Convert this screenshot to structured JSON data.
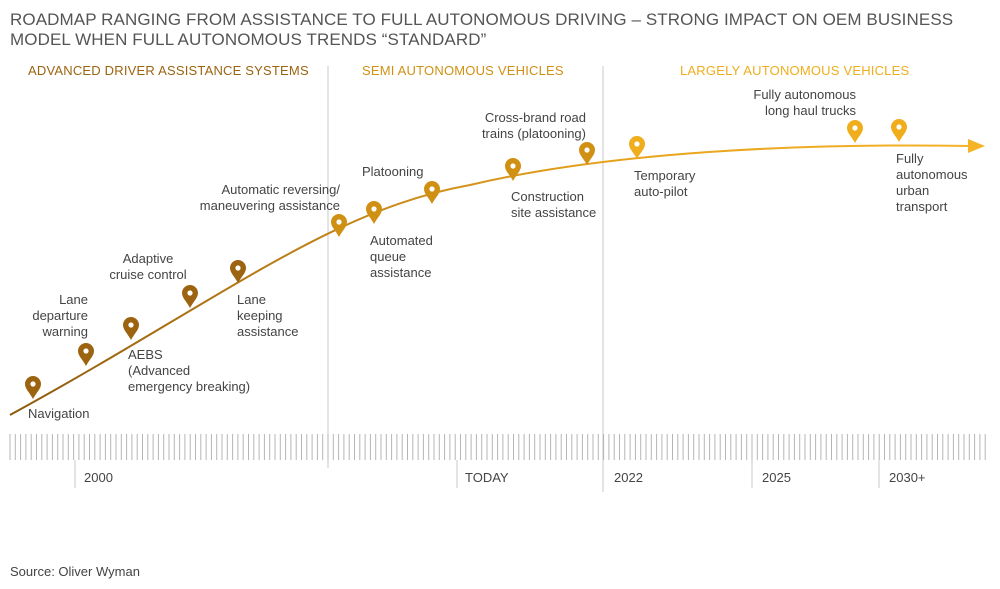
{
  "title": "ROADMAP RANGING FROM ASSISTANCE TO FULL AUTONOMOUS DRIVING – STRONG IMPACT ON OEM BUSINESS MODEL WHEN FULL AUTONOMOUS TRENDS “STANDARD”",
  "phases": [
    {
      "label": "ADVANCED DRIVER ASSISTANCE SYSTEMS",
      "color": "#9c6410"
    },
    {
      "label": "SEMI AUTONOMOUS VEHICLES",
      "color": "#d09014"
    },
    {
      "label": "LARGELY AUTONOMOUS VEHICLES",
      "color": "#f0ad1c"
    }
  ],
  "milestones": [
    {
      "label": "Navigation",
      "color": "#9c6410"
    },
    {
      "label": "Lane\ndeparture\nwarning",
      "color": "#9c6410"
    },
    {
      "label": "AEBS\n(Advanced\nemergency breaking)",
      "color": "#9c6410"
    },
    {
      "label": "Adaptive\ncruise control",
      "color": "#9c6410"
    },
    {
      "label": "Lane\nkeeping\nassistance",
      "color": "#9c6410"
    },
    {
      "label": "Automatic reversing/\nmaneuvering assistance",
      "color": "#d09014"
    },
    {
      "label": "Automated\nqueue\nassistance",
      "color": "#d09014"
    },
    {
      "label": "Platooning",
      "color": "#d09014"
    },
    {
      "label": "Construction\nsite assistance",
      "color": "#d09014"
    },
    {
      "label": "Cross-brand road\ntrains (platooning)",
      "color": "#d09014"
    },
    {
      "label": "Temporary\nauto-pilot",
      "color": "#f0ad1c"
    },
    {
      "label": "Fully autonomous\nlong haul trucks",
      "color": "#f0ad1c"
    },
    {
      "label": "Fully\nautonomous\nurban\ntransport",
      "color": "#f0ad1c"
    }
  ],
  "timeline": {
    "labels": [
      "2000",
      "TODAY",
      "2022",
      "2025",
      "2030+"
    ]
  },
  "source": "Source: Oliver Wyman",
  "colors": {
    "dark": "#9c6410",
    "mid": "#d09014",
    "light": "#f0ad1c",
    "divider": "#c8c8c8",
    "ticks": "#b5b5b5"
  }
}
